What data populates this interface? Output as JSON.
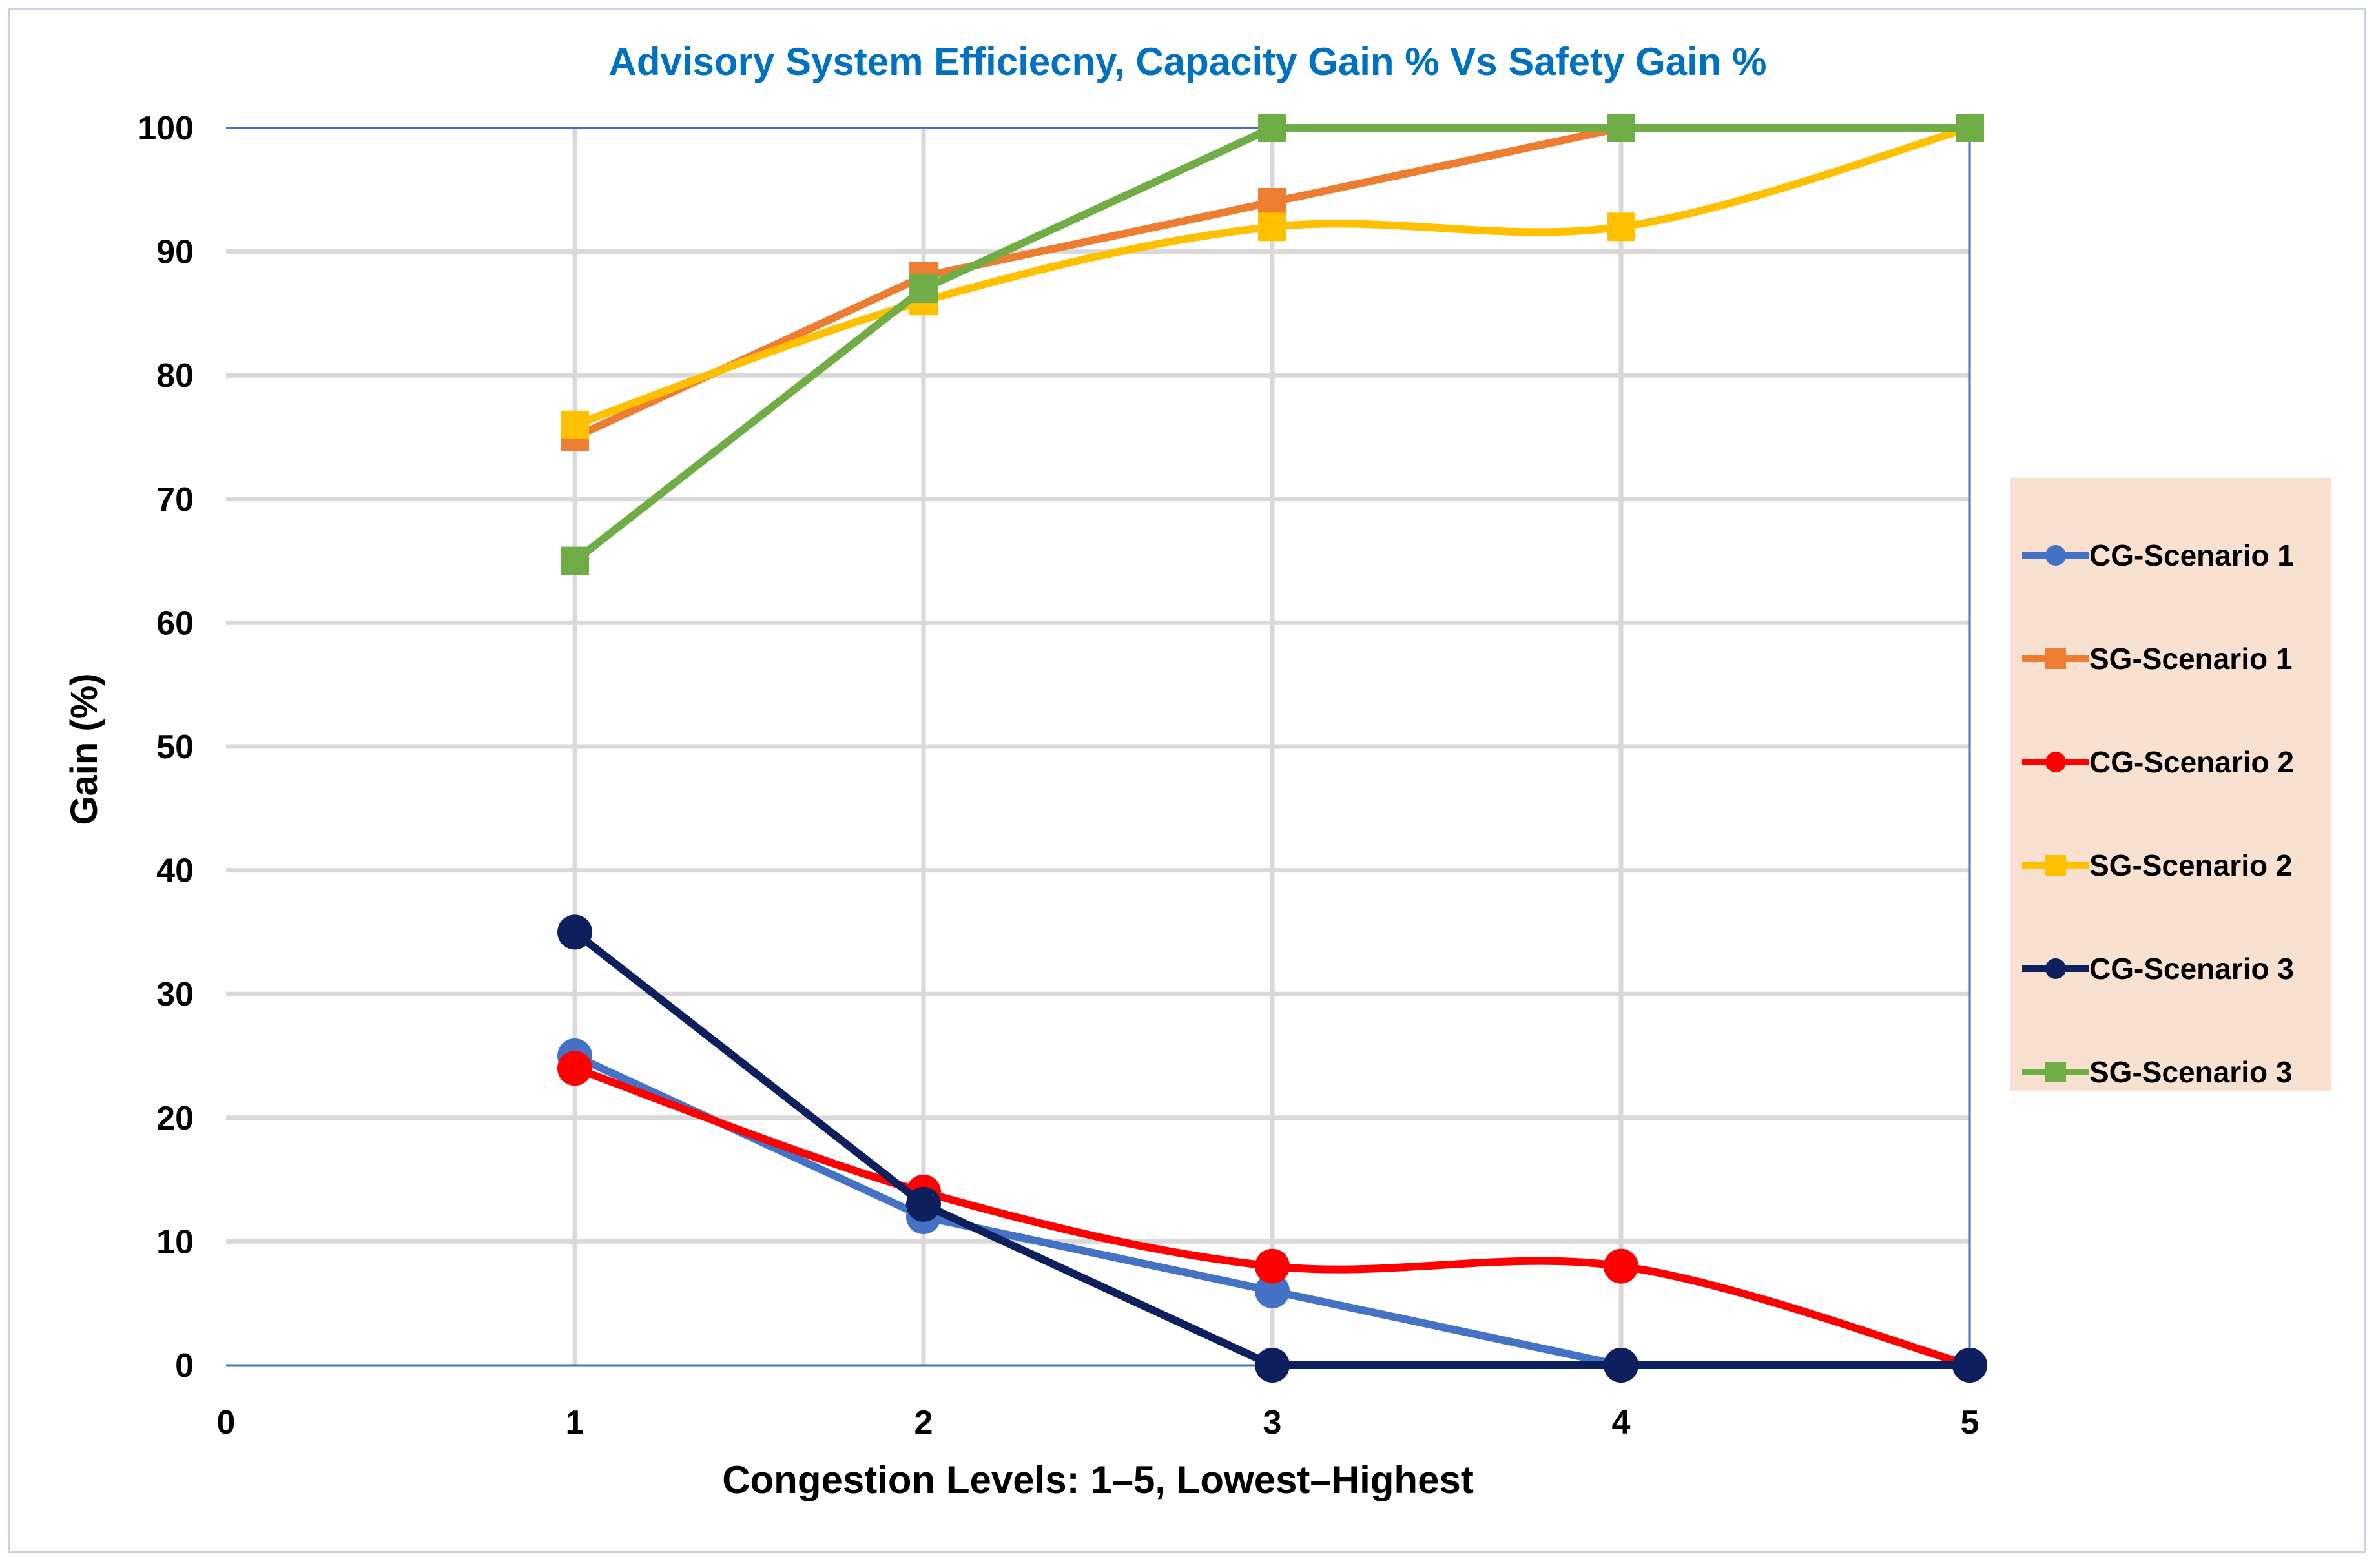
{
  "chart_data": {
    "type": "line",
    "title": "Advisory System Efficiecny, Capacity Gain % Vs Safety Gain %",
    "xlabel": "Congestion Levels: 1–5, Lowest–Highest",
    "ylabel": "Gain (%)",
    "xlim": [
      0,
      5
    ],
    "ylim": [
      0,
      100
    ],
    "xticks": [
      0,
      1,
      2,
      3,
      4,
      5
    ],
    "yticks": [
      0,
      10,
      20,
      30,
      40,
      50,
      60,
      70,
      80,
      90,
      100
    ],
    "grid": true,
    "legend_position": "right",
    "series": [
      {
        "name": "CG-Scenario 1",
        "color": "#4472c4",
        "marker": "circle",
        "smooth": false,
        "x": [
          1,
          2,
          3,
          4
        ],
        "y": [
          25,
          12,
          6,
          0
        ]
      },
      {
        "name": "SG-Scenario 1",
        "color": "#ed7d31",
        "marker": "square",
        "smooth": false,
        "x": [
          1,
          2,
          3,
          4
        ],
        "y": [
          75,
          88,
          94,
          100
        ]
      },
      {
        "name": "CG-Scenario 2",
        "color": "#ff0000",
        "marker": "circle",
        "smooth": true,
        "x": [
          1,
          2,
          3,
          4,
          5
        ],
        "y": [
          24,
          14,
          8,
          8,
          0
        ]
      },
      {
        "name": "SG-Scenario 2",
        "color": "#ffc000",
        "marker": "square",
        "smooth": true,
        "x": [
          1,
          2,
          3,
          4,
          5
        ],
        "y": [
          76,
          86,
          92,
          92,
          100
        ]
      },
      {
        "name": "CG-Scenario 3",
        "color": "#0d1f5c",
        "marker": "circle",
        "smooth": false,
        "x": [
          1,
          2,
          3,
          4,
          5
        ],
        "y": [
          35,
          13,
          0,
          0,
          0
        ]
      },
      {
        "name": "SG-Scenario 3",
        "color": "#70ad47",
        "marker": "square",
        "smooth": false,
        "x": [
          1,
          2,
          3,
          4,
          5
        ],
        "y": [
          65,
          87,
          100,
          100,
          100
        ]
      }
    ]
  },
  "colors": {
    "title": "#0070c0",
    "grid": "#d9d9d9",
    "plot_border": "#4472c4",
    "legend_bg": "#f9e1d2"
  }
}
